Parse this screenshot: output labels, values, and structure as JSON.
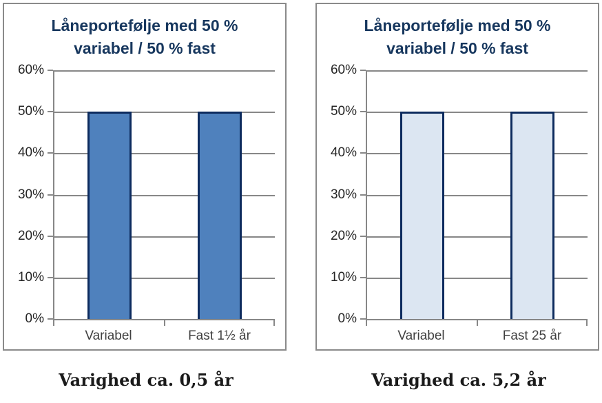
{
  "colors": {
    "title": "#17375E",
    "line": "#878787",
    "panel-border": "#8A8A8A",
    "axis-text": "#262626",
    "category-text": "#404040",
    "caption-text": "#1A1A1A",
    "bg": "#FFFFFF"
  },
  "chart_data": [
    {
      "type": "bar",
      "title": "Låneportefølje med 50 % variabel / 50 % fast",
      "title_lines": [
        "Låneportefølje med 50 %",
        "variabel / 50 % fast"
      ],
      "categories": [
        "Variabel",
        "Fast 1½ år"
      ],
      "values": [
        50,
        50
      ],
      "xlabel": "",
      "ylabel": "",
      "ylim": [
        0,
        60
      ],
      "ytick_step": 10,
      "y_ticks_desc": [
        "60%",
        "50%",
        "40%",
        "30%",
        "20%",
        "10%",
        "0%"
      ],
      "grid": true,
      "legend": false,
      "bar_fill": "#4F81BD",
      "bar_border": "#0D2B5E",
      "caption": "Varighed ca. 0,5 år"
    },
    {
      "type": "bar",
      "title": "Låneportefølje med 50 % variabel / 50 % fast",
      "title_lines": [
        "Låneportefølje med 50 %",
        "variabel / 50 % fast"
      ],
      "categories": [
        "Variabel",
        "Fast 25 år"
      ],
      "values": [
        50,
        50
      ],
      "xlabel": "",
      "ylabel": "",
      "ylim": [
        0,
        60
      ],
      "ytick_step": 10,
      "y_ticks_desc": [
        "60%",
        "50%",
        "40%",
        "30%",
        "20%",
        "10%",
        "0%"
      ],
      "grid": true,
      "legend": false,
      "bar_fill": "#DCE6F2",
      "bar_border": "#0D2B5E",
      "caption": "Varighed ca. 5,2 år"
    }
  ]
}
